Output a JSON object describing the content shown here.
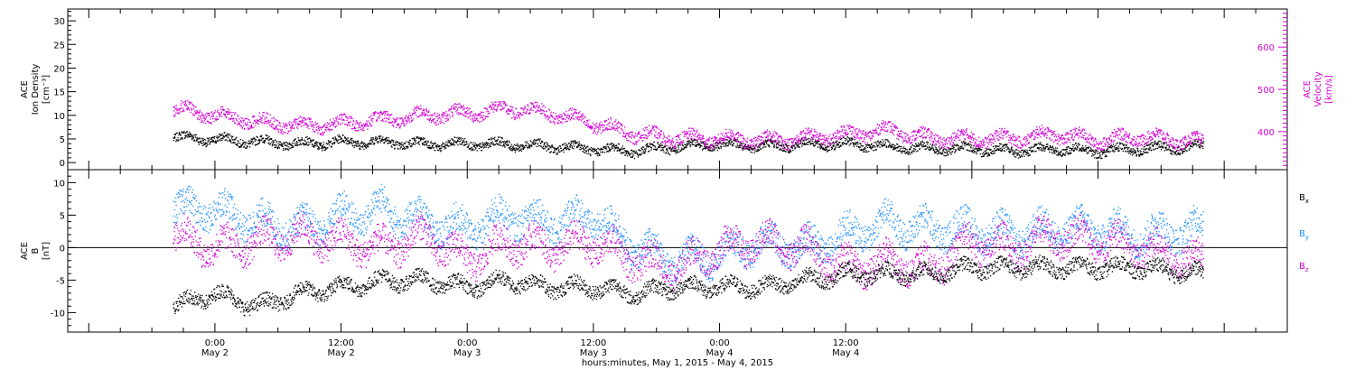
{
  "chart_data": [
    {
      "type": "scatter",
      "panel": "top",
      "ylabel_left": [
        "ACE",
        "Ion Density",
        "[cm⁻³]"
      ],
      "ylabel_right": [
        "ACE",
        "Velocity",
        "[km/s]"
      ],
      "ylim_left": [
        -1.5,
        32.5
      ],
      "ylim_right": [
        310,
        690
      ],
      "yticks_left": [
        0,
        5,
        10,
        15,
        20,
        25,
        30
      ],
      "yticks_right": [
        400,
        500,
        600
      ],
      "series": [
        {
          "name": "",
          "axis": "left",
          "color": "#000000",
          "x": [
            -4,
            0,
            4,
            8,
            12,
            16,
            20,
            24,
            28,
            32,
            36,
            40,
            44,
            48,
            52,
            56,
            60,
            64,
            68,
            72,
            76,
            80,
            84,
            88,
            94
          ],
          "y": [
            5.5,
            5.0,
            4.5,
            4.0,
            4.5,
            4.5,
            4.0,
            4.0,
            4.0,
            3.5,
            3.0,
            2.5,
            3.5,
            4.0,
            3.5,
            4.0,
            4.0,
            3.5,
            3.0,
            3.0,
            2.5,
            3.0,
            2.5,
            3.0,
            3.5
          ]
        },
        {
          "name": "",
          "axis": "right",
          "color": "#d400d4",
          "x": [
            -4,
            0,
            4,
            8,
            12,
            16,
            20,
            24,
            28,
            32,
            36,
            40,
            44,
            48,
            52,
            56,
            60,
            64,
            68,
            72,
            76,
            80,
            84,
            88,
            94
          ],
          "y": [
            455,
            440,
            425,
            415,
            420,
            430,
            440,
            445,
            455,
            445,
            420,
            395,
            385,
            385,
            380,
            385,
            395,
            405,
            385,
            385,
            385,
            395,
            380,
            390,
            375
          ]
        }
      ]
    },
    {
      "type": "scatter",
      "panel": "bottom",
      "ylabel_left": [
        "ACE",
        "B",
        "[nT]"
      ],
      "ylim": [
        -13,
        12
      ],
      "yticks": [
        -10,
        -5,
        0,
        5,
        10
      ],
      "zero_line": true,
      "series": [
        {
          "name": "Bx",
          "color": "#000000",
          "x": [
            -4,
            -2,
            0,
            2,
            4,
            8,
            12,
            16,
            20,
            24,
            28,
            32,
            36,
            40,
            44,
            48,
            52,
            56,
            60,
            64,
            68,
            72,
            76,
            80,
            84,
            88,
            94
          ],
          "y": [
            -9,
            -8,
            -7,
            -8,
            -9,
            -7,
            -6,
            -5,
            -5,
            -6,
            -5,
            -6,
            -6,
            -7,
            -6,
            -6,
            -6,
            -5,
            -4,
            -4,
            -4,
            -3,
            -3,
            -3,
            -3,
            -3,
            -4
          ]
        },
        {
          "name": "By",
          "color": "#1e90ff",
          "x": [
            -4,
            0,
            4,
            8,
            12,
            16,
            20,
            24,
            28,
            32,
            36,
            40,
            44,
            48,
            52,
            56,
            60,
            64,
            68,
            72,
            76,
            80,
            84,
            88,
            94
          ],
          "y": [
            6,
            6,
            4,
            3,
            5,
            6,
            4,
            3,
            5,
            4,
            5,
            0,
            -2,
            -1,
            1,
            0,
            2,
            4,
            3,
            3,
            2,
            3,
            3,
            2,
            3
          ]
        },
        {
          "name": "Bz",
          "color": "#d400d4",
          "x": [
            -4,
            0,
            4,
            8,
            12,
            16,
            20,
            24,
            28,
            32,
            36,
            40,
            44,
            48,
            52,
            56,
            60,
            64,
            68,
            72,
            76,
            80,
            84,
            88,
            94
          ],
          "y": [
            2,
            0,
            1,
            2,
            1,
            0,
            2,
            -2,
            1,
            0,
            1,
            -2,
            -3,
            0,
            1,
            0,
            -3,
            -2,
            -3,
            1,
            0,
            2,
            1,
            0,
            -2
          ]
        }
      ]
    }
  ],
  "x_axis": {
    "xlim": [
      -14,
      102
    ],
    "labels": [
      {
        "x": 0,
        "time": "0:00",
        "date": "May 2"
      },
      {
        "x": 12,
        "time": "12:00",
        "date": "May 2"
      },
      {
        "x": 24,
        "time": "0:00",
        "date": "May 3"
      },
      {
        "x": 36,
        "time": "12:00",
        "date": "May 3"
      },
      {
        "x": 48,
        "time": "0:00",
        "date": "May 4"
      },
      {
        "x": 60,
        "time": "12:00",
        "date": "May 4"
      }
    ],
    "title": "hours:minutes, May  1, 2015 - May  4, 2015"
  },
  "legend": [
    {
      "label": "B",
      "sub": "x",
      "color": "#000000"
    },
    {
      "label": "B",
      "sub": "y",
      "color": "#1e90ff"
    },
    {
      "label": "B",
      "sub": "z",
      "color": "#d400d4"
    }
  ]
}
